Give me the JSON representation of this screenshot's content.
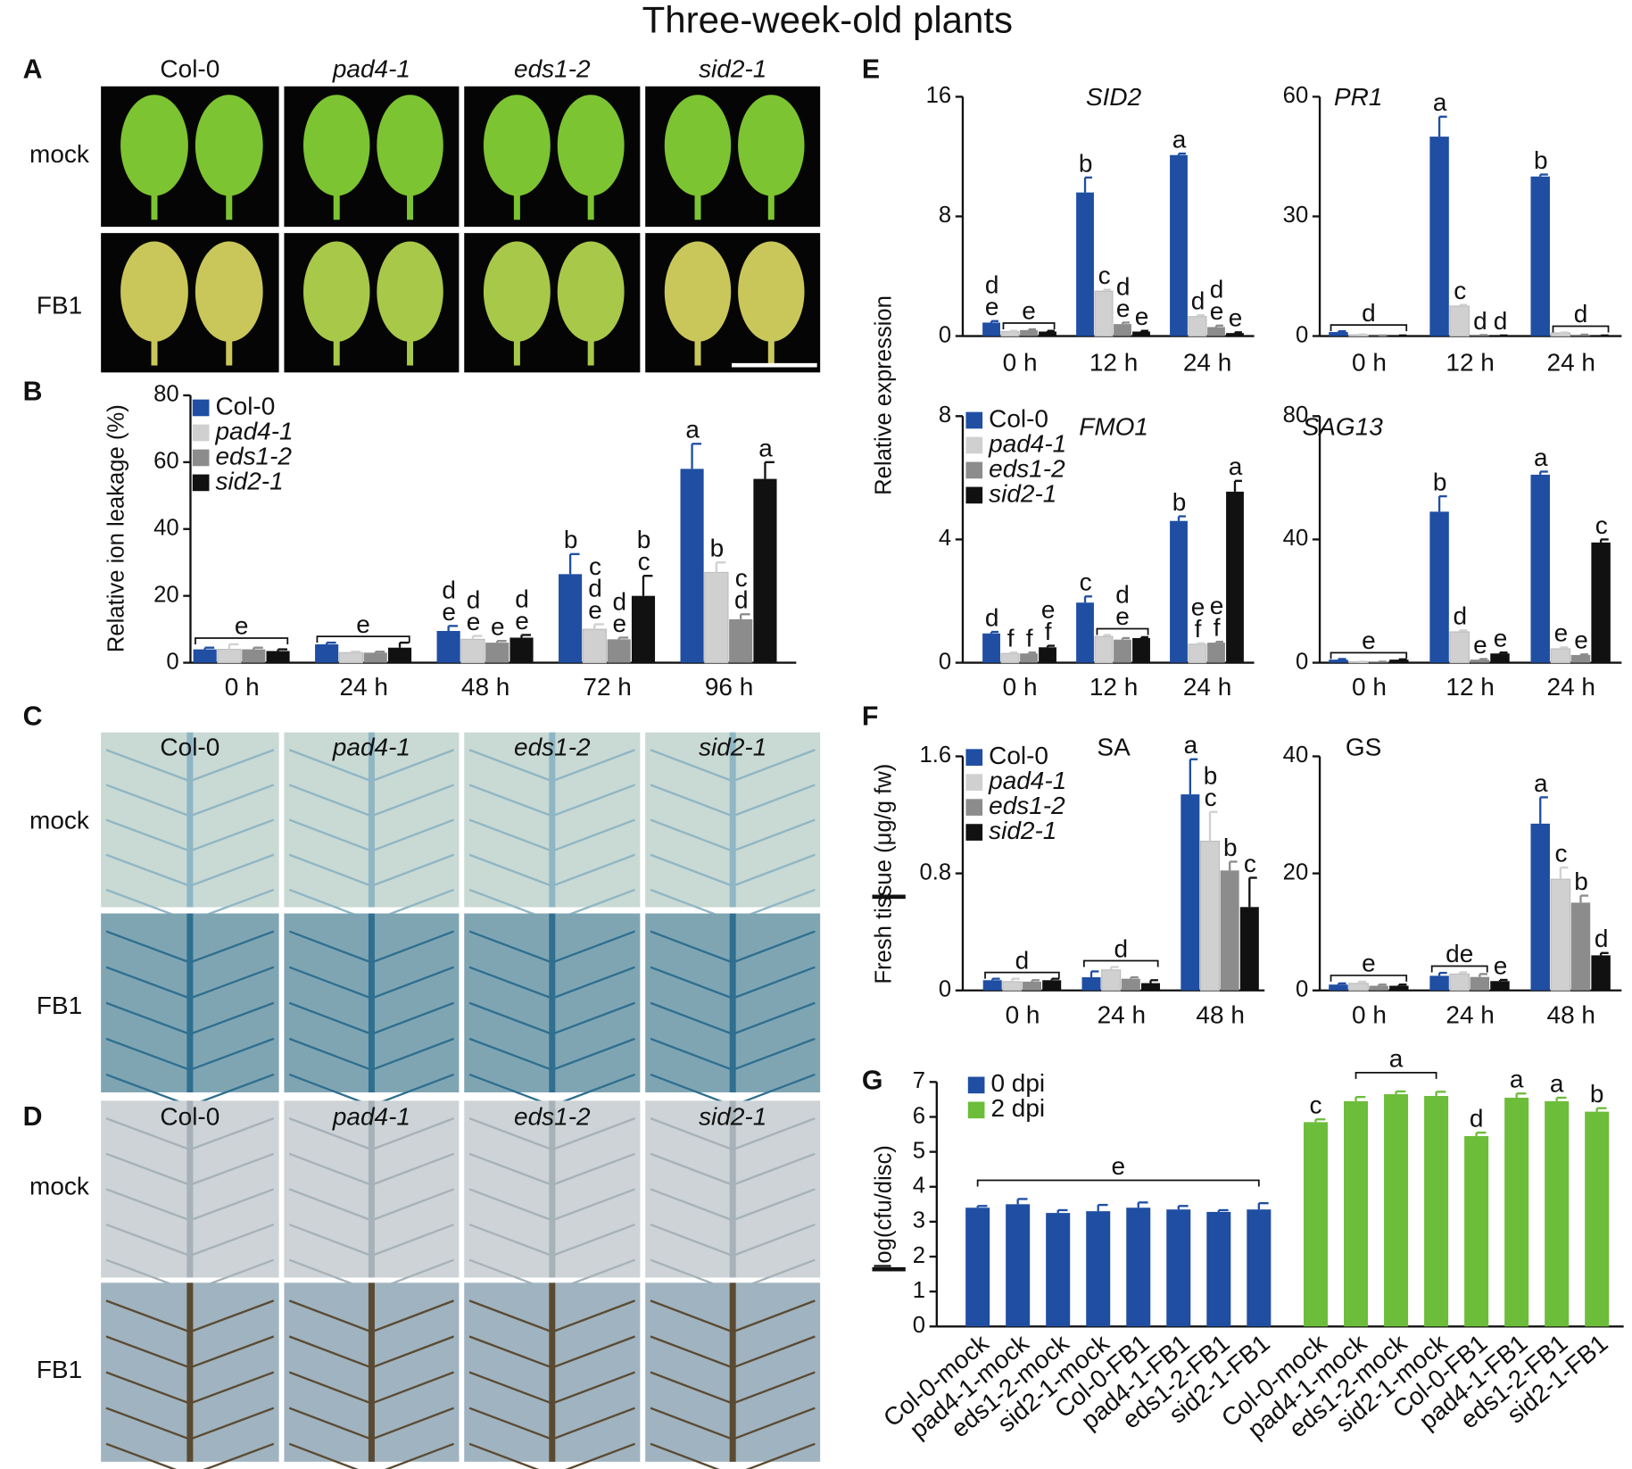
{
  "title": "Three-week-old plants",
  "panel_labels": [
    "A",
    "B",
    "C",
    "D",
    "E",
    "F",
    "G"
  ],
  "photo_panels": [
    {
      "genotypes": [
        "Col-0",
        "pad4-1",
        "eds1-2",
        "sid2-1"
      ],
      "rows": [
        "mock",
        "FB1"
      ]
    },
    {
      "genotypes": [
        "Col-0",
        "pad4-1",
        "eds1-2",
        "sid2-1"
      ],
      "rows": [
        "mock",
        "FB1"
      ]
    },
    {
      "genotypes": [
        "Col-0",
        "pad4-1",
        "eds1-2",
        "sid2-1"
      ],
      "rows": [
        "mock",
        "FB1"
      ]
    }
  ],
  "chart_data": [
    {
      "type": "grouped_bar",
      "ylabel": "Relative ion leakage (%)",
      "categories": [
        "0 h",
        "24 h",
        "48 h",
        "72 h",
        "96 h"
      ],
      "series": [
        {
          "name": "Col-0",
          "color": "#1f4ea3",
          "values": [
            4,
            5.5,
            9.5,
            26.5,
            58
          ],
          "errors": [
            0.5,
            0.5,
            1.5,
            6,
            7.5
          ],
          "letters": [
            null,
            null,
            [
              "d",
              "e"
            ],
            [
              "b"
            ],
            [
              "a"
            ]
          ]
        },
        {
          "name": "pad4-1",
          "color": "#d0d0d0",
          "values": [
            4,
            3,
            7,
            10,
            27
          ],
          "errors": [
            1.5,
            0.3,
            1,
            1.5,
            3
          ],
          "letters": [
            null,
            null,
            [
              "d",
              "e"
            ],
            [
              "c",
              "d",
              "e"
            ],
            [
              "b"
            ]
          ]
        },
        {
          "name": "eds1-2",
          "color": "#8c8c8c",
          "values": [
            4,
            3,
            6,
            7,
            13
          ],
          "errors": [
            0.5,
            0.3,
            0.5,
            0.5,
            1.5
          ],
          "letters": [
            null,
            null,
            [
              "e"
            ],
            [
              "d",
              "e"
            ],
            [
              "c",
              "d"
            ]
          ]
        },
        {
          "name": "sid2-1",
          "color": "#111111",
          "values": [
            3.5,
            4.5,
            7.5,
            20,
            55
          ],
          "errors": [
            0.5,
            1.5,
            0.8,
            6,
            5
          ],
          "letters": [
            null,
            null,
            [
              "d",
              "e"
            ],
            [
              "b",
              "c"
            ],
            [
              "a"
            ]
          ]
        }
      ],
      "bracket_letters": [
        [
          "e"
        ],
        [
          "e"
        ],
        null,
        null,
        null
      ],
      "ylim": [
        0,
        80
      ],
      "yticks": [
        0,
        20,
        40,
        60,
        80
      ],
      "legend": "upper left"
    },
    {
      "type": "grouped_bar",
      "title": "SID2",
      "title_italic": true,
      "ylabel": "Relative expression",
      "categories": [
        "0 h",
        "12 h",
        "24 h"
      ],
      "series": [
        {
          "color": "#1f4ea3",
          "values": [
            0.9,
            9.6,
            12.1
          ],
          "errors": [
            0.1,
            1,
            0.1
          ],
          "letters": [
            [
              "d",
              "e"
            ],
            [
              "b"
            ],
            [
              "a"
            ]
          ]
        },
        {
          "color": "#d0d0d0",
          "values": [
            0.3,
            3,
            1.3
          ],
          "errors": [
            0.05,
            0.1,
            0.1
          ],
          "letters": [
            null,
            [
              "c"
            ],
            [
              "d"
            ]
          ]
        },
        {
          "color": "#8c8c8c",
          "values": [
            0.4,
            0.8,
            0.6
          ],
          "errors": [
            0.05,
            0.1,
            0.1
          ],
          "letters": [
            null,
            [
              "d",
              "e"
            ],
            [
              "d",
              "e"
            ]
          ]
        },
        {
          "color": "#111111",
          "values": [
            0.3,
            0.3,
            0.2
          ],
          "errors": [
            0.05,
            0.05,
            0.05
          ],
          "letters": [
            null,
            [
              "e"
            ],
            [
              "e"
            ]
          ]
        }
      ],
      "bracket_letters": [
        [
          "e"
        ],
        null,
        null
      ],
      "ylim": [
        0,
        16
      ],
      "yticks": [
        0,
        8,
        16
      ]
    },
    {
      "type": "grouped_bar",
      "title": "PR1",
      "title_italic": true,
      "categories": [
        "0 h",
        "12 h",
        "24 h"
      ],
      "series": [
        {
          "color": "#1f4ea3",
          "values": [
            1,
            50,
            40
          ],
          "errors": [
            0.2,
            5,
            0.5
          ],
          "letters": [
            null,
            [
              "a"
            ],
            [
              "b"
            ]
          ]
        },
        {
          "color": "#d0d0d0",
          "values": [
            0.3,
            7.5,
            0.8
          ],
          "errors": [
            0.1,
            0.3,
            0.1
          ],
          "letters": [
            null,
            [
              "c"
            ],
            null
          ]
        },
        {
          "color": "#8c8c8c",
          "values": [
            0.1,
            0.2,
            0.3
          ],
          "errors": [
            0.05,
            0.05,
            0.05
          ],
          "letters": [
            null,
            [
              "d"
            ],
            null
          ]
        },
        {
          "color": "#111111",
          "values": [
            0.1,
            0.1,
            0.1
          ],
          "errors": [
            0.05,
            0.05,
            0.05
          ],
          "letters": [
            null,
            [
              "d"
            ],
            null
          ]
        }
      ],
      "bracket_letters": [
        [
          "d"
        ],
        null,
        [
          "d"
        ]
      ],
      "ylim": [
        0,
        60
      ],
      "yticks": [
        0,
        30,
        60
      ]
    },
    {
      "type": "grouped_bar",
      "title": "FMO1",
      "title_italic": true,
      "categories": [
        "0 h",
        "12 h",
        "24 h"
      ],
      "series": [
        {
          "name": "Col-0",
          "color": "#1f4ea3",
          "values": [
            0.95,
            1.95,
            4.6
          ],
          "errors": [
            0.05,
            0.2,
            0.15
          ],
          "letters": [
            [
              "d"
            ],
            [
              "c"
            ],
            [
              "b"
            ]
          ]
        },
        {
          "name": "pad4-1",
          "color": "#d0d0d0",
          "values": [
            0.3,
            0.85,
            0.6
          ],
          "errors": [
            0.03,
            0.05,
            0.03
          ],
          "letters": [
            [
              "f"
            ],
            null,
            [
              "e",
              "f"
            ]
          ]
        },
        {
          "name": "eds1-2",
          "color": "#8c8c8c",
          "values": [
            0.3,
            0.75,
            0.65
          ],
          "errors": [
            0.03,
            0.05,
            0.03
          ],
          "letters": [
            [
              "f"
            ],
            null,
            [
              "e",
              "f"
            ]
          ]
        },
        {
          "name": "sid2-1",
          "color": "#111111",
          "values": [
            0.5,
            0.8,
            5.55
          ],
          "errors": [
            0.05,
            0.03,
            0.35
          ],
          "letters": [
            [
              "e",
              "f"
            ],
            null,
            [
              "a"
            ]
          ]
        }
      ],
      "bracket_letters": [
        null,
        [
          "d",
          "e"
        ],
        null
      ],
      "ylim": [
        0,
        8
      ],
      "yticks": [
        0,
        4,
        8
      ],
      "legend": "upper left"
    },
    {
      "type": "grouped_bar",
      "title": "SAG13",
      "title_italic": true,
      "categories": [
        "0 h",
        "12 h",
        "24 h"
      ],
      "series": [
        {
          "color": "#1f4ea3",
          "values": [
            1,
            49,
            61
          ],
          "errors": [
            0.2,
            5,
            1
          ],
          "letters": [
            null,
            [
              "b"
            ],
            [
              "a"
            ]
          ]
        },
        {
          "color": "#d0d0d0",
          "values": [
            0.3,
            10,
            4.5
          ],
          "errors": [
            0.05,
            0.5,
            0.5
          ],
          "letters": [
            null,
            [
              "d"
            ],
            [
              "e"
            ]
          ]
        },
        {
          "color": "#8c8c8c",
          "values": [
            0.3,
            1,
            2.5
          ],
          "errors": [
            0.05,
            0.2,
            0.2
          ],
          "letters": [
            null,
            [
              "e"
            ],
            [
              "e"
            ]
          ]
        },
        {
          "color": "#111111",
          "values": [
            1,
            3,
            39
          ],
          "errors": [
            0.1,
            0.3,
            1
          ],
          "letters": [
            null,
            [
              "e"
            ],
            [
              "c"
            ]
          ]
        }
      ],
      "bracket_letters": [
        [
          "e"
        ],
        null,
        null
      ],
      "ylim": [
        0,
        80
      ],
      "yticks": [
        0,
        40,
        80
      ]
    },
    {
      "type": "grouped_bar",
      "title": "SA",
      "ylabel": "Fresh tissue (μg/g fw)",
      "categories": [
        "0 h",
        "24 h",
        "48 h"
      ],
      "series": [
        {
          "name": "Col-0",
          "color": "#1f4ea3",
          "values": [
            0.07,
            0.09,
            1.34
          ],
          "errors": [
            0.01,
            0.04,
            0.24
          ],
          "letters": [
            null,
            null,
            [
              "a"
            ]
          ]
        },
        {
          "name": "pad4-1",
          "color": "#d0d0d0",
          "values": [
            0.06,
            0.14,
            1.02
          ],
          "errors": [
            0.02,
            0.02,
            0.2
          ],
          "letters": [
            null,
            null,
            [
              "b",
              "c"
            ]
          ]
        },
        {
          "name": "eds1-2",
          "color": "#8c8c8c",
          "values": [
            0.06,
            0.08,
            0.82
          ],
          "errors": [
            0.01,
            0.01,
            0.06
          ],
          "letters": [
            null,
            null,
            [
              "b"
            ]
          ]
        },
        {
          "name": "sid2-1",
          "color": "#111111",
          "values": [
            0.07,
            0.05,
            0.57
          ],
          "errors": [
            0.01,
            0.02,
            0.2
          ],
          "letters": [
            null,
            null,
            [
              "c"
            ]
          ]
        }
      ],
      "bracket_letters": [
        [
          "d"
        ],
        [
          "d"
        ],
        null
      ],
      "ylim": [
        0,
        1.6
      ],
      "yticks": [
        0,
        0.8,
        1.6
      ],
      "legend": "upper left"
    },
    {
      "type": "grouped_bar",
      "title": "GS",
      "categories": [
        "0 h",
        "24 h",
        "48 h"
      ],
      "series": [
        {
          "color": "#1f4ea3",
          "values": [
            1,
            2.5,
            28.5
          ],
          "errors": [
            0.2,
            0.5,
            4.5
          ],
          "letters": [
            null,
            null,
            [
              "a"
            ]
          ]
        },
        {
          "color": "#d0d0d0",
          "values": [
            1.2,
            2.8,
            19
          ],
          "errors": [
            0.3,
            0.3,
            2
          ],
          "letters": [
            null,
            null,
            [
              "c"
            ]
          ]
        },
        {
          "color": "#8c8c8c",
          "values": [
            0.8,
            2.3,
            15
          ],
          "errors": [
            0.2,
            0.5,
            1.2
          ],
          "letters": [
            null,
            null,
            [
              "b"
            ]
          ]
        },
        {
          "color": "#111111",
          "values": [
            0.8,
            1.6,
            6
          ],
          "errors": [
            0.2,
            0.2,
            0.4
          ],
          "letters": [
            null,
            [
              "e"
            ],
            [
              "d"
            ]
          ]
        }
      ],
      "bracket_letters": [
        [
          "e"
        ],
        [
          "de"
        ],
        null
      ],
      "ylim": [
        0,
        40
      ],
      "yticks": [
        0,
        20,
        40
      ]
    },
    {
      "type": "split_bar",
      "ylabel": "log(cfu/disc)",
      "categories": [
        "Col-0-mock",
        "pad4-1-mock",
        "eds1-2-mock",
        "sid2-1-mock",
        "Col-0-FB1",
        "pad4-1-FB1",
        "eds1-2-FB1",
        "sid2-1-FB1",
        "Col-0-mock",
        "pad4-1-mock",
        "eds1-2-mock",
        "sid2-1-mock",
        "Col-0-FB1",
        "pad4-1-FB1",
        "eds1-2-FB1",
        "sid2-1-FB1"
      ],
      "series": [
        {
          "name": "0 dpi",
          "color": "#1f4ea3",
          "values": [
            3.4,
            3.5,
            3.25,
            3.3,
            3.4,
            3.35,
            3.28,
            3.35,
            null,
            null,
            null,
            null,
            null,
            null,
            null,
            null
          ],
          "errors": [
            0.05,
            0.15,
            0.08,
            0.18,
            0.15,
            0.1,
            0.05,
            0.18,
            null,
            null,
            null,
            null,
            null,
            null,
            null,
            null
          ],
          "letters": [
            null,
            null,
            null,
            null,
            null,
            null,
            null,
            null,
            null,
            null,
            null,
            null,
            null,
            null,
            null,
            null
          ],
          "bracket": "e"
        },
        {
          "name": "2 dpi",
          "color": "#6cbd3a",
          "values": [
            null,
            null,
            null,
            null,
            null,
            null,
            null,
            null,
            5.85,
            6.45,
            6.65,
            6.6,
            5.45,
            6.55,
            6.45,
            6.15
          ],
          "errors": [
            null,
            null,
            null,
            null,
            null,
            null,
            null,
            null,
            0.08,
            0.12,
            0.08,
            0.12,
            0.1,
            0.12,
            0.1,
            0.1
          ],
          "letters": [
            null,
            null,
            null,
            null,
            null,
            null,
            null,
            null,
            "c",
            null,
            null,
            null,
            "d",
            "a",
            "a",
            "b"
          ],
          "bracket": "a"
        }
      ],
      "ylim": [
        0,
        7
      ],
      "yticks": [
        0,
        1,
        2,
        3,
        4,
        5,
        6,
        7
      ],
      "legend": "upper left"
    }
  ]
}
